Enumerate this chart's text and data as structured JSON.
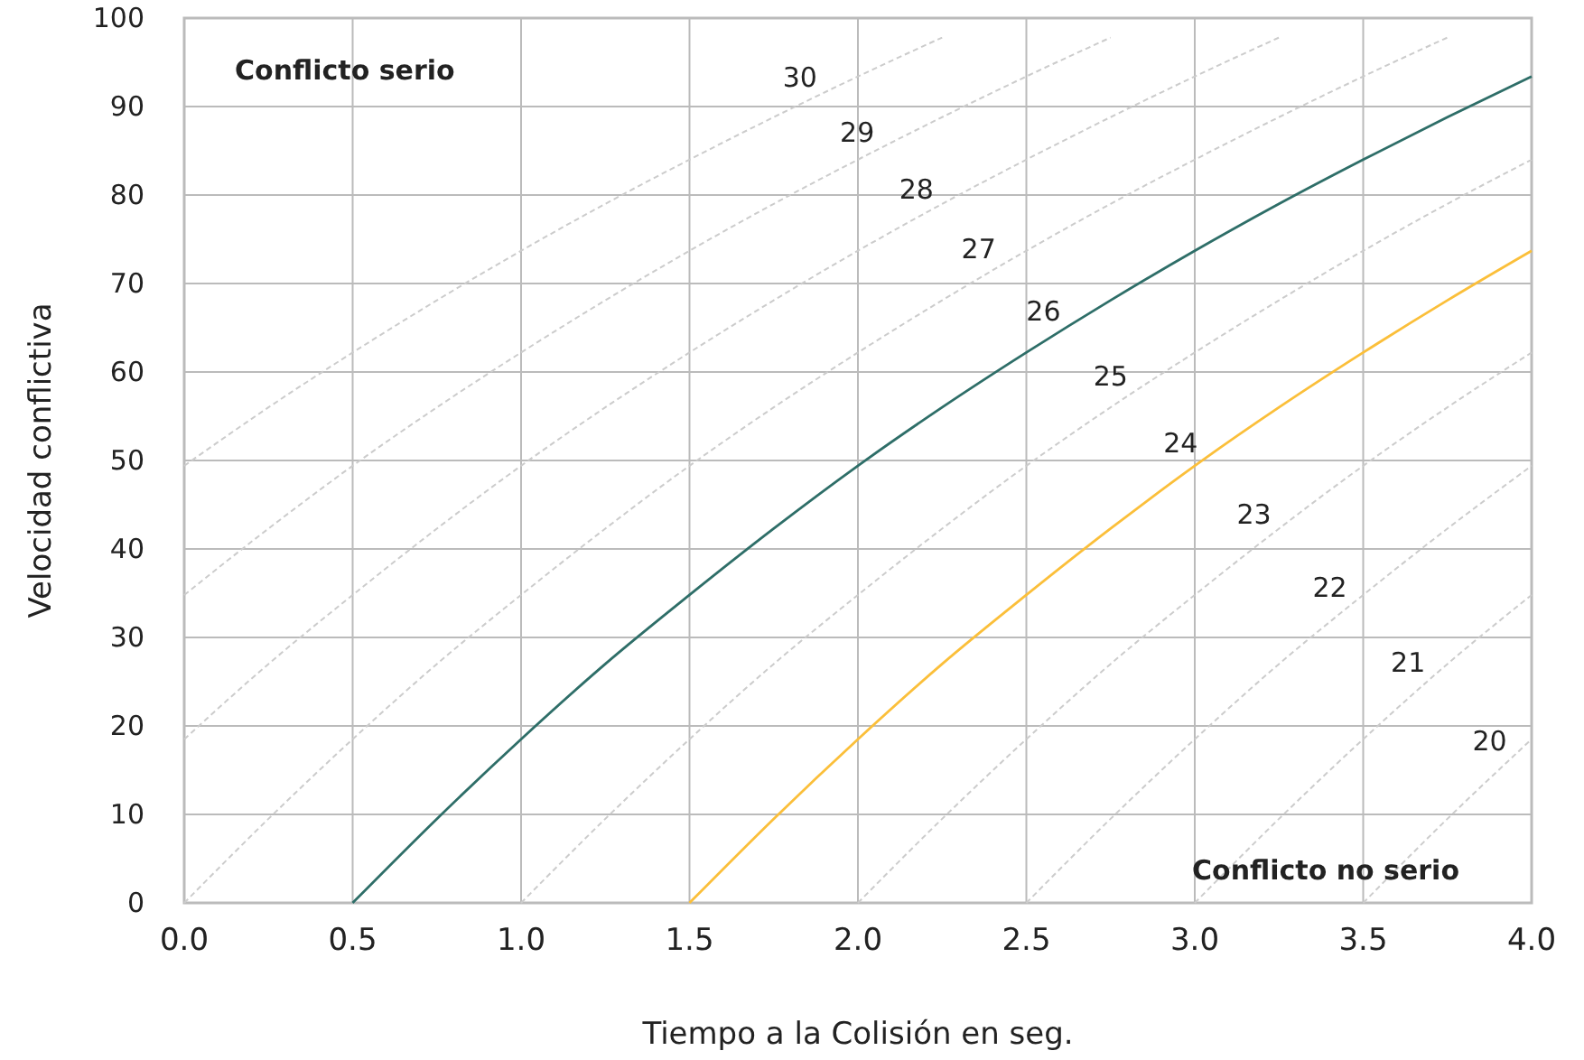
{
  "chart_data": {
    "type": "line",
    "xlabel": "Tiempo a la Colisión en seg.",
    "ylabel": "Velocidad conflictiva",
    "xlim": [
      0,
      4
    ],
    "ylim": [
      0,
      100
    ],
    "xticks": [
      {
        "value": 0,
        "label": "0.0"
      },
      {
        "value": 0.5,
        "label": "0.5"
      },
      {
        "value": 1,
        "label": "1.0"
      },
      {
        "value": 1.5,
        "label": "1.5"
      },
      {
        "value": 2,
        "label": "2.0"
      },
      {
        "value": 2.5,
        "label": "2.5"
      },
      {
        "value": 3,
        "label": "3.0"
      },
      {
        "value": 3.5,
        "label": "3.5"
      },
      {
        "value": 4,
        "label": "4.0"
      }
    ],
    "yticks": [
      0,
      10,
      20,
      30,
      40,
      50,
      60,
      70,
      80,
      90,
      100
    ],
    "grid": true,
    "annotations": [
      "Conflicto serio",
      "Conflicto no serio"
    ],
    "series": [
      {
        "name": "30",
        "color": "#cccccc",
        "line_style": "dashed",
        "x": [
          0,
          0.25,
          0.5,
          0.75,
          1,
          1.25,
          1.5,
          1.75,
          2,
          2.25
        ],
        "values": [
          49.4,
          56,
          62.2,
          68.1,
          73.7,
          79,
          84,
          88.8,
          93.4,
          97.8
        ]
      },
      {
        "name": "29",
        "color": "#cccccc",
        "line_style": "dashed",
        "x": [
          0,
          0.25,
          0.5,
          0.75,
          1,
          1.25,
          1.5,
          1.75,
          2,
          2.25,
          2.5,
          2.75
        ],
        "values": [
          34.8,
          42.3,
          49.4,
          56,
          62.2,
          68.1,
          73.7,
          79,
          84,
          88.8,
          93.4,
          97.8
        ]
      },
      {
        "name": "28",
        "color": "#cccccc",
        "line_style": "dashed",
        "x": [
          0,
          0.25,
          0.5,
          0.75,
          1,
          1.25,
          1.5,
          1.75,
          2,
          2.25,
          2.5,
          2.75,
          3,
          3.25
        ],
        "values": [
          18.5,
          27,
          34.8,
          42.3,
          49.4,
          56,
          62.2,
          68.1,
          73.7,
          79,
          84,
          88.8,
          93.4,
          97.8
        ]
      },
      {
        "name": "27",
        "color": "#cccccc",
        "line_style": "dashed",
        "x": [
          0,
          0.25,
          0.5,
          0.75,
          1,
          1.25,
          1.5,
          1.75,
          2,
          2.25,
          2.5,
          2.75,
          3,
          3.25,
          3.5,
          3.75
        ],
        "values": [
          0,
          9.5,
          18.5,
          27,
          34.8,
          42.3,
          49.4,
          56,
          62.2,
          68.1,
          73.7,
          79,
          84,
          88.8,
          93.4,
          97.8
        ]
      },
      {
        "name": "26",
        "color": "#2e6e68",
        "line_style": "solid",
        "x": [
          0.5,
          0.75,
          1,
          1.25,
          1.5,
          1.75,
          2,
          2.25,
          2.5,
          2.75,
          3,
          3.25,
          3.5,
          3.75,
          4
        ],
        "values": [
          0,
          9.5,
          18.5,
          27,
          34.8,
          42.3,
          49.4,
          56,
          62.2,
          68.1,
          73.7,
          79,
          84,
          88.8,
          93.4
        ]
      },
      {
        "name": "25",
        "color": "#cccccc",
        "line_style": "dashed",
        "x": [
          1,
          1.25,
          1.5,
          1.75,
          2,
          2.25,
          2.5,
          2.75,
          3,
          3.25,
          3.5,
          3.75,
          4
        ],
        "values": [
          0,
          9.5,
          18.5,
          27,
          34.8,
          42.3,
          49.4,
          56,
          62.2,
          68.1,
          73.7,
          79,
          84
        ]
      },
      {
        "name": "24",
        "color": "#fbbf3a",
        "line_style": "solid",
        "x": [
          1.5,
          1.75,
          2,
          2.25,
          2.5,
          2.75,
          3,
          3.25,
          3.5,
          3.75,
          4
        ],
        "values": [
          0,
          9.5,
          18.5,
          27,
          34.8,
          42.3,
          49.4,
          56,
          62.2,
          68.1,
          73.7
        ]
      },
      {
        "name": "23",
        "color": "#cccccc",
        "line_style": "dashed",
        "x": [
          2,
          2.25,
          2.5,
          2.75,
          3,
          3.25,
          3.5,
          3.75,
          4
        ],
        "values": [
          0,
          9.5,
          18.5,
          27,
          34.8,
          42.3,
          49.4,
          56,
          62.2
        ]
      },
      {
        "name": "22",
        "color": "#cccccc",
        "line_style": "dashed",
        "x": [
          2.5,
          2.75,
          3,
          3.25,
          3.5,
          3.75,
          4
        ],
        "values": [
          0,
          9.5,
          18.5,
          27,
          34.8,
          42.3,
          49.4
        ]
      },
      {
        "name": "21",
        "color": "#cccccc",
        "line_style": "dashed",
        "x": [
          3,
          3.25,
          3.5,
          3.75,
          4
        ],
        "values": [
          0,
          9.5,
          18.5,
          27,
          34.8
        ]
      },
      {
        "name": "20",
        "color": "#cccccc",
        "line_style": "dashed",
        "x": [
          3.5,
          3.75,
          4
        ],
        "values": [
          0,
          9.5,
          18.5
        ]
      }
    ]
  }
}
